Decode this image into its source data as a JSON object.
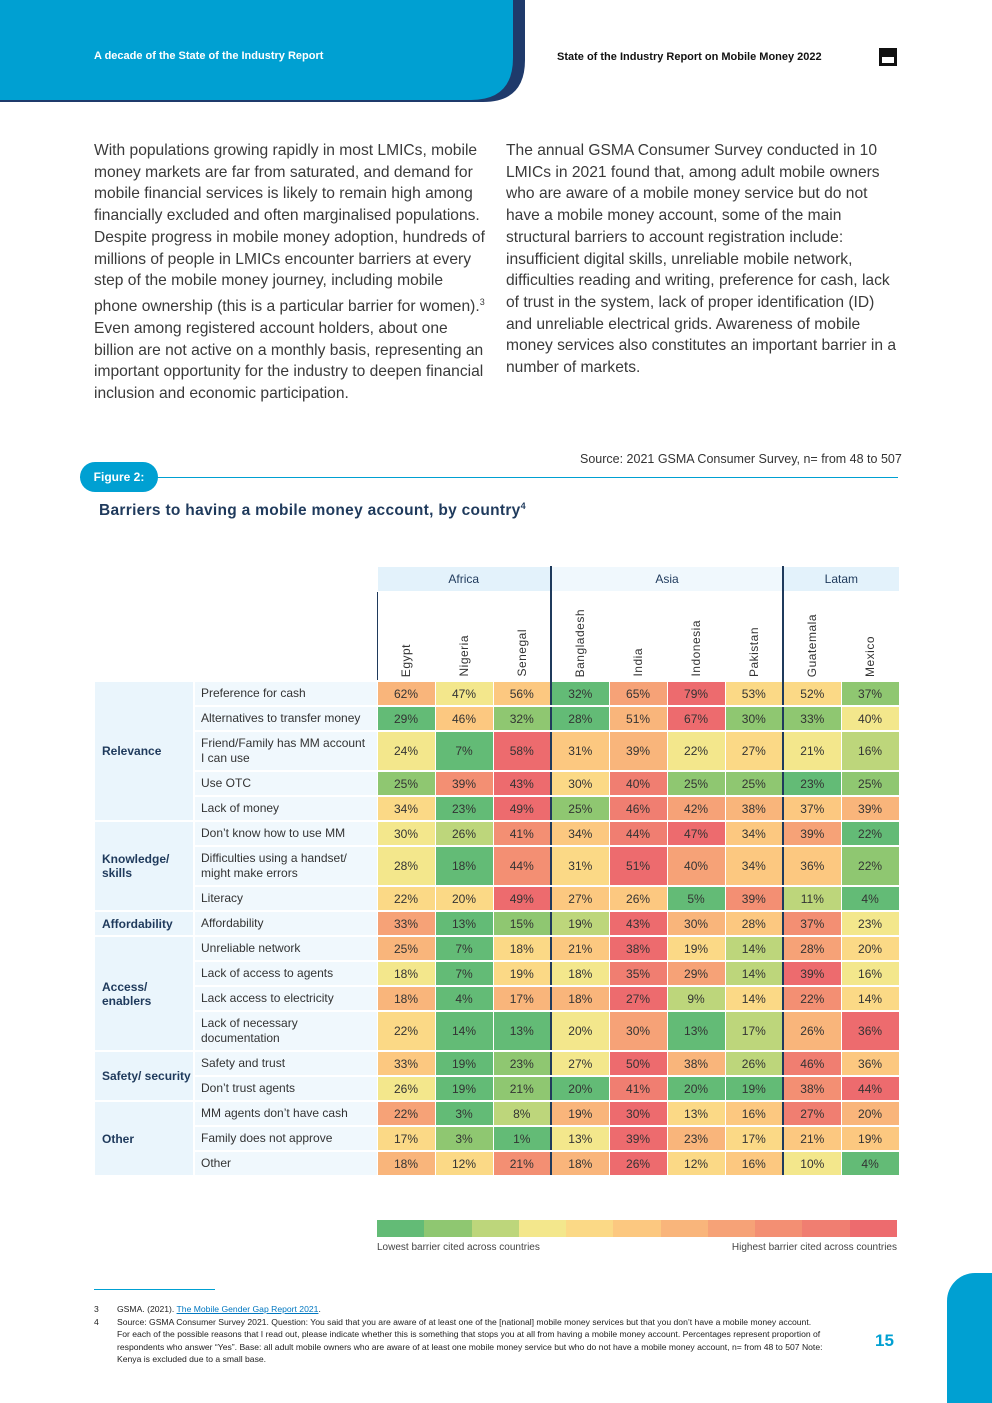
{
  "header": {
    "left": "A decade of the State of the Industry Report",
    "right": "State of the Industry Report on Mobile Money 2022"
  },
  "body": {
    "left": {
      "before": "With populations growing rapidly in most LMICs, mobile money markets are far from saturated, and demand for mobile financial services is likely to remain high among financially excluded and often marginalised populations. Despite progress in mobile money adoption, hundreds of millions of people in LMICs encounter barriers at every step of the mobile money journey, including mobile phone ownership (this is a particular barrier for women).",
      "ref": "3",
      "after": " Even among registered account holders, about one billion are not active on a monthly basis, representing an important opportunity for the industry to deepen financial inclusion and economic participation."
    },
    "right": "The annual GSMA Consumer Survey conducted in 10 LMICs in 2021 found that, among adult mobile owners who are aware of a mobile money service but do not have a mobile money account, some of the main structural barriers to account registration include: insufficient digital skills, unreliable mobile network, difficulties reading and writing, preference for cash, lack of trust in the system, lack of proper identification (ID) and unreliable electrical grids. Awareness of mobile money services also constitutes an important barrier in a number of markets."
  },
  "figure": {
    "source": "Source: 2021 GSMA Consumer Survey, n= from 48 to 507",
    "label": "Figure 2:",
    "title": "Barriers to having a mobile money account, by country",
    "title_ref": "4"
  },
  "table": {
    "regions": [
      {
        "name": "Africa",
        "span": 3
      },
      {
        "name": "Asia",
        "span": 4
      },
      {
        "name": "Latam",
        "span": 2
      }
    ],
    "countries": [
      "Egypt",
      "Nigeria",
      "Senegal",
      "Bangladesh",
      "India",
      "Indonesia",
      "Pakistan",
      "Guatemala",
      "Mexico"
    ],
    "groups": [
      {
        "name": "Relevance",
        "rows": [
          {
            "label": "Preference for cash",
            "values": [
              "62%",
              "47%",
              "56%",
              "32%",
              "65%",
              "79%",
              "53%",
              "52%",
              "37%"
            ]
          },
          {
            "label": "Alternatives to transfer money",
            "values": [
              "29%",
              "46%",
              "32%",
              "28%",
              "51%",
              "67%",
              "30%",
              "33%",
              "40%"
            ]
          },
          {
            "label": "Friend/Family has MM account I can use",
            "values": [
              "24%",
              "7%",
              "58%",
              "31%",
              "39%",
              "22%",
              "27%",
              "21%",
              "16%"
            ]
          },
          {
            "label": "Use OTC",
            "values": [
              "25%",
              "39%",
              "43%",
              "30%",
              "40%",
              "25%",
              "25%",
              "23%",
              "25%"
            ]
          },
          {
            "label": "Lack of money",
            "values": [
              "34%",
              "23%",
              "49%",
              "25%",
              "46%",
              "42%",
              "38%",
              "37%",
              "39%"
            ]
          }
        ]
      },
      {
        "name": "Knowledge/ skills",
        "rows": [
          {
            "label": "Don’t know how to use MM",
            "values": [
              "30%",
              "26%",
              "41%",
              "34%",
              "44%",
              "47%",
              "34%",
              "39%",
              "22%"
            ]
          },
          {
            "label": "Difficulties using a handset/ might make errors",
            "values": [
              "28%",
              "18%",
              "44%",
              "31%",
              "51%",
              "40%",
              "34%",
              "36%",
              "22%"
            ]
          },
          {
            "label": "Literacy",
            "values": [
              "22%",
              "20%",
              "49%",
              "27%",
              "26%",
              "5%",
              "39%",
              "11%",
              "4%"
            ]
          }
        ]
      },
      {
        "name": "Affordability",
        "rows": [
          {
            "label": "Affordability",
            "values": [
              "33%",
              "13%",
              "15%",
              "19%",
              "43%",
              "30%",
              "28%",
              "37%",
              "23%"
            ]
          }
        ]
      },
      {
        "name": "Access/ enablers",
        "rows": [
          {
            "label": "Unreliable network",
            "values": [
              "25%",
              "7%",
              "18%",
              "21%",
              "38%",
              "19%",
              "14%",
              "28%",
              "20%"
            ]
          },
          {
            "label": "Lack of access to agents",
            "values": [
              "18%",
              "7%",
              "19%",
              "18%",
              "35%",
              "29%",
              "14%",
              "39%",
              "16%"
            ]
          },
          {
            "label": "Lack access to electricity",
            "values": [
              "18%",
              "4%",
              "17%",
              "18%",
              "27%",
              "9%",
              "14%",
              "22%",
              "14%"
            ]
          },
          {
            "label": "Lack of necessary documentation",
            "values": [
              "22%",
              "14%",
              "13%",
              "20%",
              "30%",
              "13%",
              "17%",
              "26%",
              "36%"
            ]
          }
        ]
      },
      {
        "name": "Safety/ security",
        "rows": [
          {
            "label": "Safety and trust",
            "values": [
              "33%",
              "19%",
              "23%",
              "27%",
              "50%",
              "38%",
              "26%",
              "46%",
              "36%"
            ]
          },
          {
            "label": "Don’t trust agents",
            "values": [
              "26%",
              "19%",
              "21%",
              "20%",
              "41%",
              "20%",
              "19%",
              "38%",
              "44%"
            ]
          }
        ]
      },
      {
        "name": "Other",
        "rows": [
          {
            "label": "MM agents don’t have cash",
            "values": [
              "22%",
              "3%",
              "8%",
              "19%",
              "30%",
              "13%",
              "16%",
              "27%",
              "20%"
            ]
          },
          {
            "label": "Family does not approve",
            "values": [
              "17%",
              "3%",
              "1%",
              "13%",
              "39%",
              "23%",
              "17%",
              "21%",
              "19%"
            ]
          },
          {
            "label": "Other",
            "values": [
              "18%",
              "12%",
              "21%",
              "18%",
              "26%",
              "12%",
              "16%",
              "10%",
              "4%"
            ]
          }
        ]
      }
    ]
  },
  "legend": {
    "colors": [
      "#63bb76",
      "#8fc771",
      "#bdd67b",
      "#f3e78c",
      "#fbd986",
      "#fcc880",
      "#f9b57b",
      "#f6a277",
      "#f38f73",
      "#f07e71",
      "#ed6b6e"
    ],
    "low": "Lowest barrier cited across countries",
    "high": "Highest barrier cited across countries"
  },
  "footnotes": [
    {
      "num": "3",
      "before": "GSMA. (2021). ",
      "link": "The Mobile Gender Gap Report 2021",
      "after": "."
    },
    {
      "num": "4",
      "text": "Source: GSMA Consumer Survey 2021. Question: You said that you are aware of at least one of the [national] mobile money services but that you don’t have a mobile money account. For each of the possible reasons that I read out, please indicate whether this is something that stops you at all from having a mobile money account. Percentages represent proportion of respondents who answer “Yes”. Base: all adult mobile owners who are aware of at least one mobile money service but who do not have a mobile money account, n= from 48 to 507 Note: Kenya is excluded due to a small base."
    }
  ],
  "page_number": "15"
}
